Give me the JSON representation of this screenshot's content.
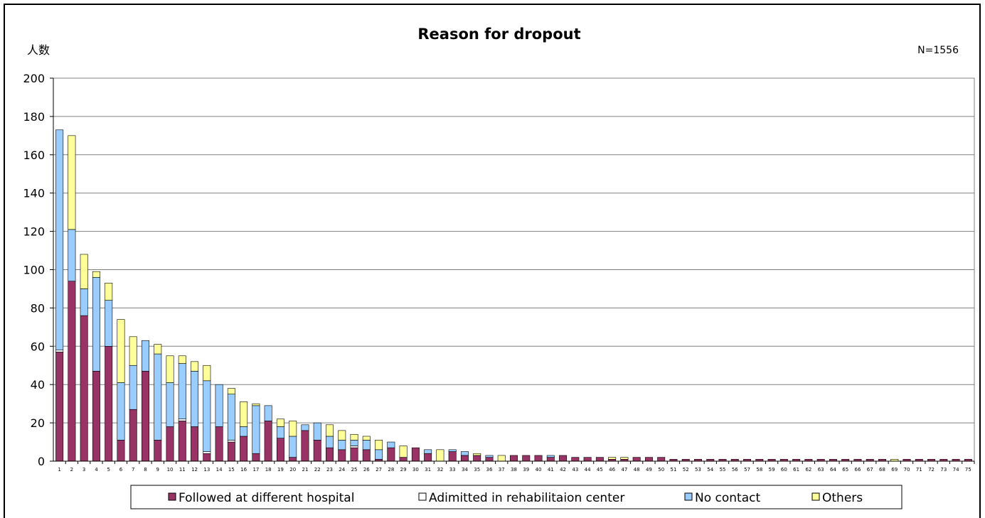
{
  "chart_data": {
    "type": "bar",
    "stacked": true,
    "title": "Reason for dropout",
    "ylabel": "人数",
    "note": "N=1556",
    "ylim": [
      0,
      200
    ],
    "yticks": [
      0,
      20,
      40,
      60,
      80,
      100,
      120,
      140,
      160,
      180,
      200
    ],
    "grid": true,
    "legend_position": "bottom",
    "categories": [
      "1",
      "2",
      "3",
      "4",
      "5",
      "6",
      "7",
      "8",
      "9",
      "10",
      "11",
      "12",
      "13",
      "14",
      "15",
      "16",
      "17",
      "18",
      "19",
      "20",
      "21",
      "22",
      "23",
      "24",
      "25",
      "26",
      "27",
      "28",
      "29",
      "30",
      "31",
      "32",
      "33",
      "34",
      "35",
      "36",
      "37",
      "38",
      "39",
      "40",
      "41",
      "42",
      "43",
      "44",
      "45",
      "46",
      "47",
      "48",
      "49",
      "50",
      "51",
      "52",
      "53",
      "54",
      "55",
      "56",
      "57",
      "58",
      "59",
      "60",
      "61",
      "62",
      "63",
      "64",
      "65",
      "66",
      "67",
      "68",
      "69",
      "70",
      "71",
      "72",
      "73",
      "74",
      "75"
    ],
    "series": [
      {
        "name": "Followed at different hospital",
        "color": "#993366",
        "legend_marker": "■",
        "values": [
          57,
          94,
          76,
          47,
          60,
          11,
          27,
          47,
          11,
          18,
          21,
          18,
          4,
          18,
          10,
          13,
          4,
          21,
          12,
          2,
          16,
          11,
          7,
          6,
          7,
          6,
          1,
          7,
          2,
          7,
          4,
          0,
          5,
          3,
          3,
          2,
          0,
          3,
          3,
          3,
          2,
          3,
          2,
          2,
          2,
          1,
          1,
          2,
          2,
          2,
          1,
          1,
          1,
          1,
          1,
          1,
          1,
          1,
          1,
          1,
          1,
          1,
          1,
          1,
          1,
          1,
          1,
          1,
          0,
          1,
          1,
          1,
          1,
          1,
          1
        ]
      },
      {
        "name": "Adimitted in rehabilitaion center",
        "color": "#ffffff",
        "legend_marker": "□",
        "values": [
          1,
          0,
          0,
          0,
          0,
          0,
          0,
          0,
          0,
          0,
          1,
          0,
          1,
          0,
          1,
          0,
          0,
          0,
          0,
          0,
          0,
          0,
          0,
          0,
          1,
          0,
          0,
          0,
          0,
          0,
          0,
          0,
          0,
          0,
          0,
          0,
          0,
          0,
          0,
          0,
          0,
          0,
          0,
          0,
          0,
          0,
          0,
          0,
          0,
          0,
          0,
          0,
          0,
          0,
          0,
          0,
          0,
          0,
          0,
          0,
          0,
          0,
          0,
          0,
          0,
          0,
          0,
          0,
          0,
          0,
          0,
          0,
          0,
          0,
          0
        ]
      },
      {
        "name": "No contact",
        "color": "#99ccff",
        "legend_marker": "■",
        "values": [
          115,
          27,
          14,
          49,
          24,
          30,
          23,
          16,
          45,
          23,
          29,
          29,
          37,
          22,
          24,
          5,
          25,
          8,
          6,
          11,
          3,
          9,
          6,
          5,
          3,
          5,
          5,
          3,
          0,
          0,
          2,
          0,
          1,
          2,
          0,
          1,
          0,
          0,
          0,
          0,
          1,
          0,
          0,
          0,
          0,
          0,
          0,
          0,
          0,
          0,
          0,
          0,
          0,
          0,
          0,
          0,
          0,
          0,
          0,
          0,
          0,
          0,
          0,
          0,
          0,
          0,
          0,
          0,
          0,
          0,
          0,
          0,
          0,
          0,
          0
        ]
      },
      {
        "name": "Others",
        "color": "#ffff99",
        "legend_marker": "■",
        "values": [
          0,
          49,
          18,
          3,
          9,
          33,
          15,
          0,
          5,
          14,
          4,
          5,
          8,
          0,
          3,
          13,
          1,
          0,
          4,
          8,
          0,
          0,
          6,
          5,
          3,
          2,
          5,
          0,
          6,
          0,
          0,
          6,
          0,
          0,
          1,
          0,
          3,
          0,
          0,
          0,
          0,
          0,
          0,
          0,
          0,
          1,
          1,
          0,
          0,
          0,
          0,
          0,
          0,
          0,
          0,
          0,
          0,
          0,
          0,
          0,
          0,
          0,
          0,
          0,
          0,
          0,
          0,
          0,
          1,
          0,
          0,
          0,
          0,
          0,
          0
        ]
      }
    ]
  }
}
